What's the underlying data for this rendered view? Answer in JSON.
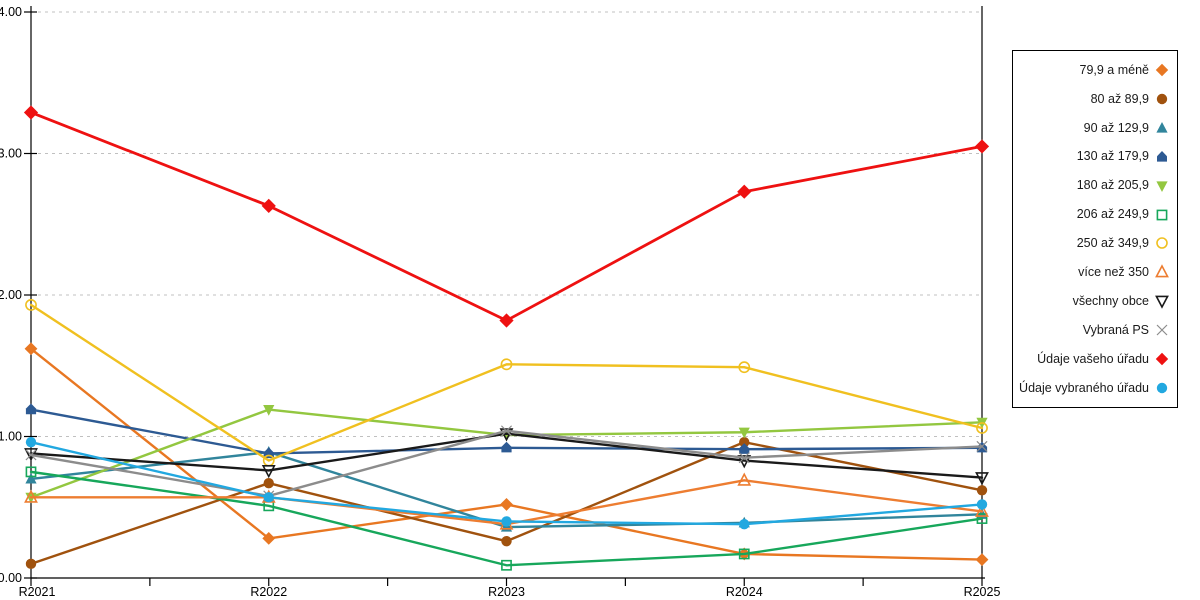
{
  "page": {
    "background": "#ffffff"
  },
  "chart_data": {
    "type": "line",
    "title": "",
    "xlabel": "",
    "ylabel": "",
    "categories": [
      "R2021",
      "R2022",
      "R2023",
      "R2024",
      "R2025"
    ],
    "ylim": [
      0,
      4
    ],
    "y_ticks": [
      "0.00",
      "1.00",
      "2.00",
      "3.00",
      "4.00"
    ],
    "grid": "horizontal-dashed",
    "gridline_color": "#c0c0c0",
    "axis_color": "#000000",
    "legend_position": "right",
    "series": [
      {
        "name": "79,9 a méně",
        "marker": "diamond",
        "filled": true,
        "color": "#e87722",
        "values": [
          1.62,
          0.28,
          0.52,
          0.17,
          0.13
        ]
      },
      {
        "name": "80 až 89,9",
        "marker": "circle",
        "filled": true,
        "color": "#a0520e",
        "values": [
          0.1,
          0.67,
          0.26,
          0.96,
          0.62
        ]
      },
      {
        "name": "90 až 129,9",
        "marker": "triangle",
        "filled": true,
        "color": "#31859c",
        "values": [
          0.7,
          0.89,
          0.36,
          0.39,
          0.45
        ]
      },
      {
        "name": "130 až 179,9",
        "marker": "pentagon",
        "filled": true,
        "color": "#2d5a93",
        "values": [
          1.19,
          0.88,
          0.92,
          0.91,
          0.92
        ]
      },
      {
        "name": "180 až 205,9",
        "marker": "triangle-down",
        "filled": true,
        "color": "#93c740",
        "values": [
          0.57,
          1.19,
          1.01,
          1.03,
          1.1
        ]
      },
      {
        "name": "206 až 249,9",
        "marker": "square-open",
        "filled": false,
        "color": "#17a75b",
        "values": [
          0.75,
          0.51,
          0.09,
          0.17,
          0.42
        ]
      },
      {
        "name": "250 až 349,9",
        "marker": "circle-open",
        "filled": false,
        "color": "#f0c020",
        "values": [
          1.93,
          0.83,
          1.51,
          1.49,
          1.06
        ]
      },
      {
        "name": "více než 350",
        "marker": "triangle-open",
        "filled": false,
        "color": "#ed7d31",
        "values": [
          0.57,
          0.57,
          0.38,
          0.69,
          0.47
        ]
      },
      {
        "name": "všechny obce",
        "marker": "triangle-down-open",
        "filled": false,
        "color": "#1a1a1a",
        "values": [
          0.88,
          0.76,
          1.02,
          0.83,
          0.71
        ]
      },
      {
        "name": "Vybraná PS",
        "marker": "x",
        "filled": false,
        "color": "#8c8c8c",
        "values": [
          0.87,
          0.58,
          1.04,
          0.85,
          0.93
        ]
      },
      {
        "name": "Údaje vašeho úřadu",
        "marker": "diamond",
        "filled": true,
        "color": "#ee1111",
        "values": [
          3.29,
          2.63,
          1.82,
          2.73,
          3.05
        ]
      },
      {
        "name": "Údaje vybraného úřadu",
        "marker": "circle",
        "filled": true,
        "color": "#22a8e0",
        "values": [
          0.96,
          0.57,
          0.4,
          0.38,
          0.52
        ]
      }
    ]
  }
}
